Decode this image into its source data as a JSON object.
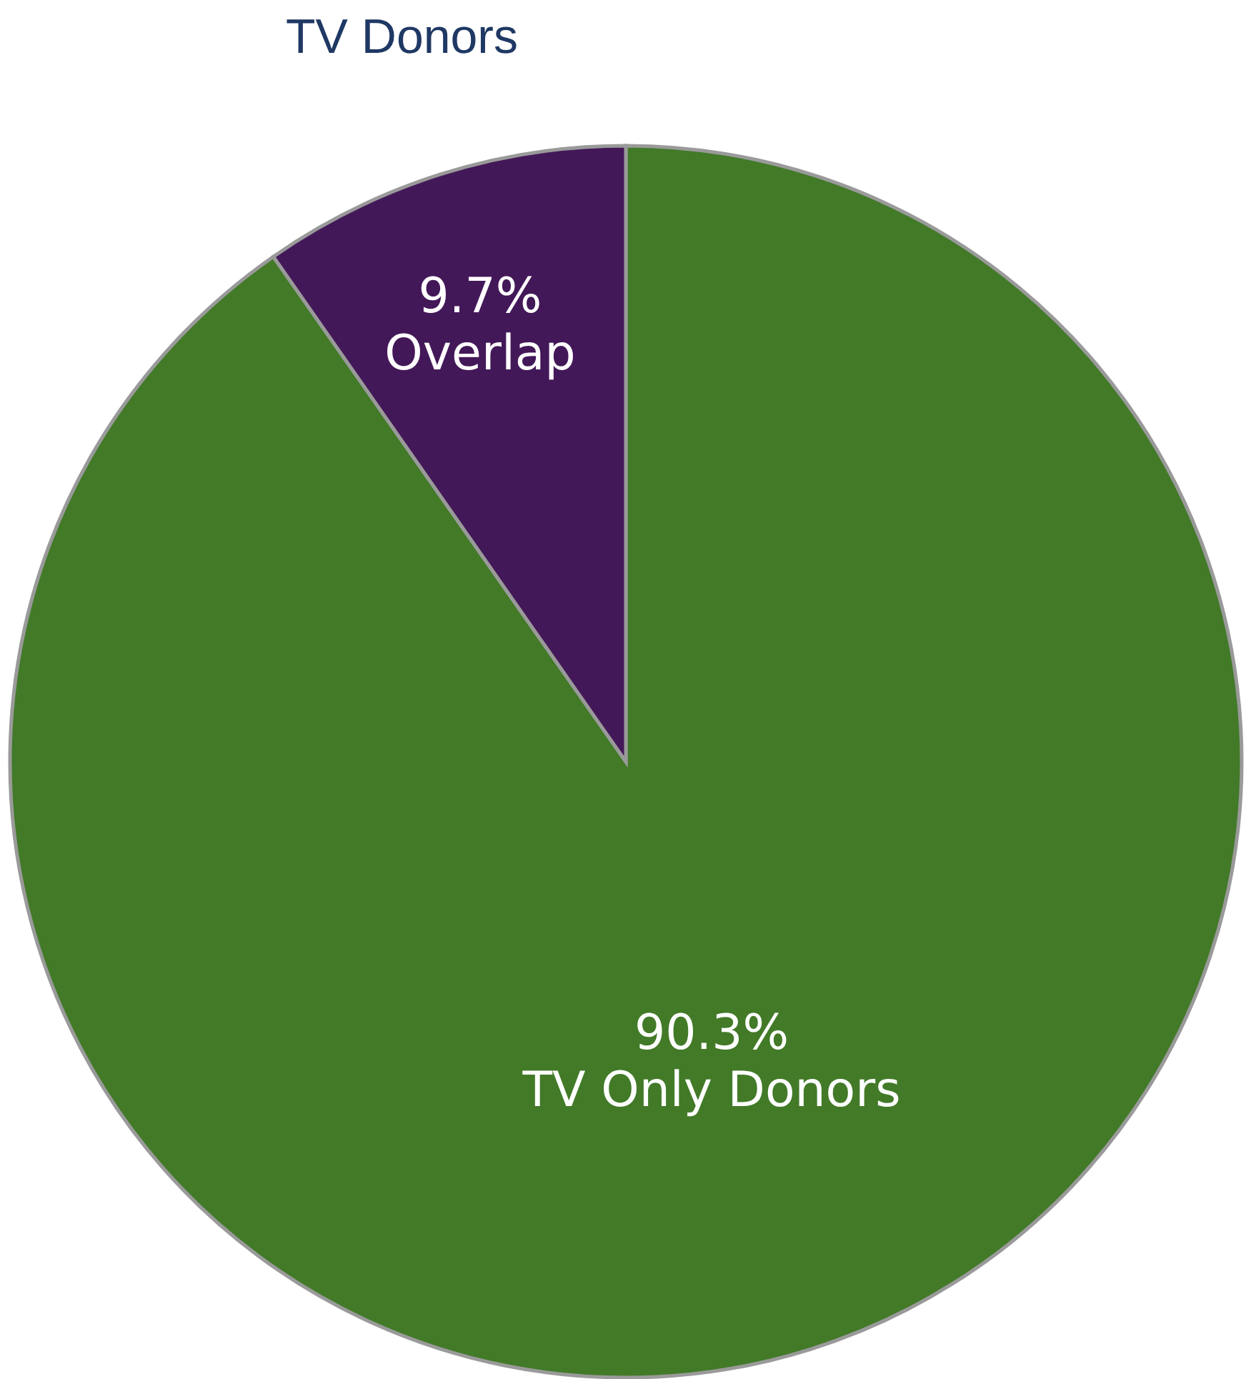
{
  "chart_data": {
    "type": "pie",
    "title": "TV Donors",
    "categories": [
      "TV Only Donors",
      "Overlap"
    ],
    "values": [
      90.3,
      9.7
    ],
    "value_labels": [
      "90.3%",
      "9.7%"
    ],
    "colors": [
      "#427a28",
      "#431858"
    ]
  }
}
